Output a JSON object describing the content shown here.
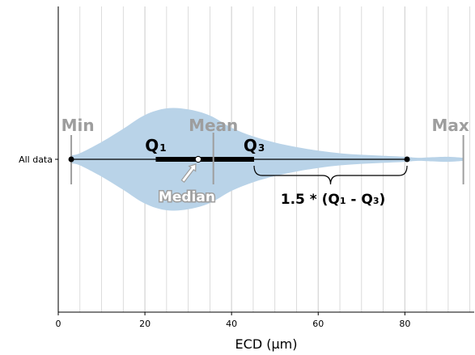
{
  "chart_data": {
    "type": "violin",
    "category": "All data",
    "xlabel": "ECD (μm)",
    "xlim": [
      0,
      96
    ],
    "xticks": [
      0,
      20,
      40,
      60,
      80
    ],
    "xtick_labels": [
      "0",
      "20",
      "40",
      "60",
      "80"
    ],
    "minor_grid_step": 5,
    "stats": {
      "min": 3,
      "q1": 22.5,
      "median": 32.3,
      "mean": 35.8,
      "q3": 45.2,
      "whisker_upper": 80.5,
      "max": 93.5
    },
    "density_profile": {
      "x": [
        3,
        5,
        10,
        15,
        20,
        25,
        30,
        35,
        40,
        45,
        50,
        55,
        60,
        65,
        70,
        75,
        80,
        83,
        86,
        90,
        93.5
      ],
      "half_width": [
        0.08,
        0.12,
        0.34,
        0.6,
        0.87,
        1.0,
        0.98,
        0.86,
        0.62,
        0.45,
        0.33,
        0.24,
        0.17,
        0.12,
        0.09,
        0.07,
        0.05,
        0.03,
        0.04,
        0.05,
        0.03
      ]
    },
    "annotations": {
      "min": "Min",
      "mean": "Mean",
      "max": "Max",
      "q1_main": "Q",
      "q1_sub": "1",
      "q3_main": "Q",
      "q3_sub": "3",
      "median": "Median",
      "iqr_formula": {
        "prefix": "1.5 * (Q",
        "sub1": "1",
        "mid": " - Q",
        "sub2": "3",
        "suffix": ")"
      }
    },
    "colors": {
      "violin_fill": "#b9d3e8",
      "grid": "#d3d3d3",
      "gray_label": "#9e9e9e",
      "box": "#000000"
    }
  }
}
